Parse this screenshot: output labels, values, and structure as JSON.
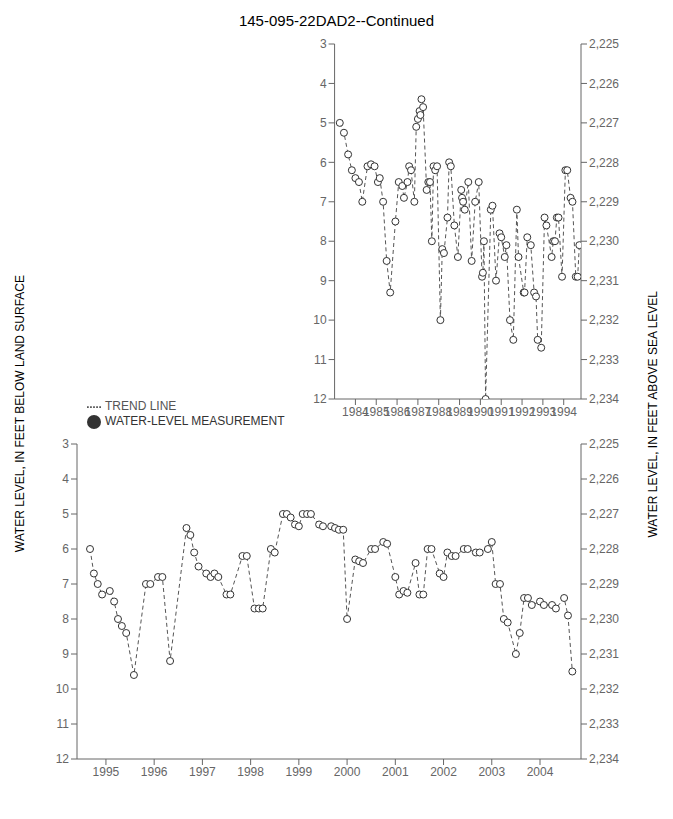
{
  "chart_data": [
    {
      "type": "line",
      "title": "145-095-22DAD2--Continued",
      "ylabel": "WATER LEVEL, IN FEET BELOW LAND SURFACE",
      "y2label": "WATER LEVEL, IN FEET ABOVE SEA LEVEL",
      "legend": "lower left",
      "xlim": [
        1983.0,
        1994.83
      ],
      "xticks": [
        1984,
        1985,
        1986,
        1987,
        1988,
        1989,
        1990,
        1991,
        1992,
        1993,
        1994
      ],
      "ylim": [
        12,
        3
      ],
      "yticks": [
        3,
        4,
        5,
        6,
        7,
        8,
        9,
        10,
        11,
        12
      ],
      "y2lim": [
        2234,
        2225
      ],
      "y2ticks": [
        {
          "value": 2225,
          "label": "2,225"
        },
        {
          "value": 2226,
          "label": "2,226"
        },
        {
          "value": 2227,
          "label": "2,227"
        },
        {
          "value": 2228,
          "label": "2,228"
        },
        {
          "value": 2229,
          "label": "2,229"
        },
        {
          "value": 2230,
          "label": "2,230"
        },
        {
          "value": 2231,
          "label": "2,231"
        },
        {
          "value": 2232,
          "label": "2,232"
        },
        {
          "value": 2233,
          "label": "2,233"
        },
        {
          "value": 2234,
          "label": "2,234"
        }
      ],
      "x": [
        1983.25,
        1983.45,
        1983.65,
        1983.83,
        1984.0,
        1984.17,
        1984.33,
        1984.58,
        1984.75,
        1984.92,
        1985.08,
        1985.17,
        1985.33,
        1985.5,
        1985.67,
        1985.92,
        1986.08,
        1986.25,
        1986.33,
        1986.5,
        1986.58,
        1986.67,
        1986.83,
        1986.92,
        1987.0,
        1987.08,
        1987.12,
        1987.17,
        1987.25,
        1987.42,
        1987.5,
        1987.58,
        1987.67,
        1987.75,
        1987.83,
        1987.92,
        1988.08,
        1988.17,
        1988.25,
        1988.42,
        1988.5,
        1988.58,
        1988.75,
        1988.92,
        1989.08,
        1989.12,
        1989.17,
        1989.25,
        1989.42,
        1989.58,
        1989.75,
        1989.92,
        1990.08,
        1990.12,
        1990.17,
        1990.25,
        1990.5,
        1990.58,
        1990.75,
        1990.92,
        1991.0,
        1991.17,
        1991.25,
        1991.42,
        1991.58,
        1991.75,
        1991.83,
        1992.08,
        1992.12,
        1992.25,
        1992.42,
        1992.58,
        1992.67,
        1992.75,
        1992.92,
        1993.08,
        1993.17,
        1993.42,
        1993.5,
        1993.58,
        1993.67,
        1993.75,
        1993.92,
        1994.08,
        1994.17,
        1994.33,
        1994.42,
        1994.58,
        1994.67,
        1994.75
      ],
      "series": [
        {
          "name": "TREND LINE",
          "type": "line",
          "line_style": "dashed",
          "color": "#555555",
          "values": [
            5.0,
            5.25,
            5.8,
            6.2,
            6.4,
            6.5,
            7.0,
            6.1,
            6.05,
            6.1,
            6.5,
            6.4,
            7.0,
            8.5,
            9.3,
            7.5,
            6.5,
            6.6,
            6.9,
            6.5,
            6.1,
            6.2,
            7.0,
            5.1,
            4.9,
            4.7,
            4.8,
            4.4,
            4.6,
            6.7,
            6.5,
            6.5,
            8.0,
            6.1,
            6.2,
            6.1,
            10.0,
            8.2,
            8.3,
            7.4,
            6.0,
            6.1,
            7.6,
            8.4,
            6.7,
            6.9,
            7.0,
            7.2,
            6.5,
            8.5,
            7.0,
            6.5,
            8.9,
            8.8,
            8.0,
            12.0,
            7.2,
            7.1,
            9.0,
            7.8,
            7.9,
            8.4,
            8.1,
            10.0,
            10.5,
            7.2,
            8.4,
            9.3,
            9.3,
            7.9,
            8.1,
            9.3,
            9.4,
            10.5,
            10.7,
            7.4,
            7.6,
            8.4,
            8.0,
            8.0,
            7.4,
            7.4,
            8.9,
            6.2,
            6.2,
            6.9,
            7.0,
            8.9,
            8.9,
            8.1
          ]
        },
        {
          "name": "WATER-LEVEL MEASUREMENT",
          "type": "scatter",
          "marker": "circle",
          "color": "#333333",
          "values": [
            5.0,
            5.25,
            5.8,
            6.2,
            6.4,
            6.5,
            7.0,
            6.1,
            6.05,
            6.1,
            6.5,
            6.4,
            7.0,
            8.5,
            9.3,
            7.5,
            6.5,
            6.6,
            6.9,
            6.5,
            6.1,
            6.2,
            7.0,
            5.1,
            4.9,
            4.7,
            4.8,
            4.4,
            4.6,
            6.7,
            6.5,
            6.5,
            8.0,
            6.1,
            6.2,
            6.1,
            10.0,
            8.2,
            8.3,
            7.4,
            6.0,
            6.1,
            7.6,
            8.4,
            6.7,
            6.9,
            7.0,
            7.2,
            6.5,
            8.5,
            7.0,
            6.5,
            8.9,
            8.8,
            8.0,
            12.0,
            7.2,
            7.1,
            9.0,
            7.8,
            7.9,
            8.4,
            8.1,
            10.0,
            10.5,
            7.2,
            8.4,
            9.3,
            9.3,
            7.9,
            8.1,
            9.3,
            9.4,
            10.5,
            10.7,
            7.4,
            7.6,
            8.4,
            8.0,
            8.0,
            7.4,
            7.4,
            8.9,
            6.2,
            6.2,
            6.9,
            7.0,
            8.9,
            8.9,
            8.1
          ]
        }
      ]
    },
    {
      "type": "line",
      "xlim": [
        1994.4,
        2004.85
      ],
      "xticks": [
        1995,
        1996,
        1997,
        1998,
        1999,
        2000,
        2001,
        2002,
        2003,
        2004
      ],
      "ylim": [
        12,
        3
      ],
      "yticks": [
        3,
        4,
        5,
        6,
        7,
        8,
        9,
        10,
        11,
        12
      ],
      "y2lim": [
        2234,
        2225
      ],
      "y2ticks": [
        {
          "value": 2225,
          "label": "2,225"
        },
        {
          "value": 2226,
          "label": "2,226"
        },
        {
          "value": 2227,
          "label": "2,227"
        },
        {
          "value": 2228,
          "label": "2,228"
        },
        {
          "value": 2229,
          "label": "2,229"
        },
        {
          "value": 2230,
          "label": "2,230"
        },
        {
          "value": 2231,
          "label": "2,231"
        },
        {
          "value": 2232,
          "label": "2,232"
        },
        {
          "value": 2233,
          "label": "2,233"
        },
        {
          "value": 2234,
          "label": "2,234"
        }
      ],
      "x": [
        1994.67,
        1994.75,
        1994.83,
        1994.92,
        1995.08,
        1995.17,
        1995.25,
        1995.33,
        1995.42,
        1995.58,
        1995.83,
        1995.92,
        1996.08,
        1996.17,
        1996.33,
        1996.67,
        1996.75,
        1996.83,
        1996.92,
        1997.08,
        1997.17,
        1997.25,
        1997.33,
        1997.5,
        1997.58,
        1997.83,
        1997.92,
        1998.08,
        1998.17,
        1998.25,
        1998.42,
        1998.5,
        1998.67,
        1998.75,
        1998.83,
        1998.92,
        1999.0,
        1999.08,
        1999.17,
        1999.25,
        1999.42,
        1999.5,
        1999.67,
        1999.75,
        1999.83,
        1999.92,
        2000.0,
        2000.17,
        2000.25,
        2000.33,
        2000.5,
        2000.58,
        2000.75,
        2000.83,
        2001.0,
        2001.08,
        2001.17,
        2001.25,
        2001.42,
        2001.5,
        2001.58,
        2001.67,
        2001.75,
        2001.92,
        2002.0,
        2002.08,
        2002.17,
        2002.25,
        2002.42,
        2002.5,
        2002.67,
        2002.75,
        2002.92,
        2003.0,
        2003.08,
        2003.17,
        2003.25,
        2003.33,
        2003.5,
        2003.58,
        2003.67,
        2003.75,
        2003.83,
        2004.0,
        2004.08,
        2004.25,
        2004.33,
        2004.5,
        2004.58,
        2004.67
      ],
      "series": [
        {
          "type": "line",
          "line_style": "dashed",
          "color": "#555555",
          "values": [
            6.0,
            6.7,
            7.0,
            7.3,
            7.2,
            7.5,
            8.0,
            8.2,
            8.4,
            9.6,
            7.0,
            7.0,
            6.8,
            6.8,
            9.2,
            5.4,
            5.6,
            6.1,
            6.5,
            6.7,
            6.8,
            6.7,
            6.8,
            7.3,
            7.3,
            6.2,
            6.2,
            7.7,
            7.7,
            7.7,
            6.0,
            6.1,
            5.0,
            5.0,
            5.1,
            5.3,
            5.35,
            5.0,
            5.0,
            5.0,
            5.3,
            5.35,
            5.35,
            5.4,
            5.45,
            5.45,
            8.0,
            6.3,
            6.35,
            6.4,
            6.0,
            6.0,
            5.8,
            5.85,
            6.8,
            7.3,
            7.2,
            7.25,
            6.4,
            7.3,
            7.3,
            6.0,
            6.0,
            6.7,
            6.8,
            6.1,
            6.2,
            6.2,
            6.0,
            6.0,
            6.1,
            6.1,
            6.0,
            5.8,
            7.0,
            7.0,
            8.0,
            8.1,
            9.0,
            8.4,
            7.4,
            7.4,
            7.6,
            7.5,
            7.6,
            7.6,
            7.7,
            7.4,
            7.9,
            9.5
          ]
        },
        {
          "type": "scatter",
          "marker": "circle",
          "color": "#333333",
          "values": [
            6.0,
            6.7,
            7.0,
            7.3,
            7.2,
            7.5,
            8.0,
            8.2,
            8.4,
            9.6,
            7.0,
            7.0,
            6.8,
            6.8,
            9.2,
            5.4,
            5.6,
            6.1,
            6.5,
            6.7,
            6.8,
            6.7,
            6.8,
            7.3,
            7.3,
            6.2,
            6.2,
            7.7,
            7.7,
            7.7,
            6.0,
            6.1,
            5.0,
            5.0,
            5.1,
            5.3,
            5.35,
            5.0,
            5.0,
            5.0,
            5.3,
            5.35,
            5.35,
            5.4,
            5.45,
            5.45,
            8.0,
            6.3,
            6.35,
            6.4,
            6.0,
            6.0,
            5.8,
            5.85,
            6.8,
            7.3,
            7.2,
            7.25,
            6.4,
            7.3,
            7.3,
            6.0,
            6.0,
            6.7,
            6.8,
            6.1,
            6.2,
            6.2,
            6.0,
            6.0,
            6.1,
            6.1,
            6.0,
            5.8,
            7.0,
            7.0,
            8.0,
            8.1,
            9.0,
            8.4,
            7.4,
            7.4,
            7.6,
            7.5,
            7.6,
            7.6,
            7.7,
            7.4,
            7.9,
            9.5
          ]
        }
      ]
    }
  ]
}
